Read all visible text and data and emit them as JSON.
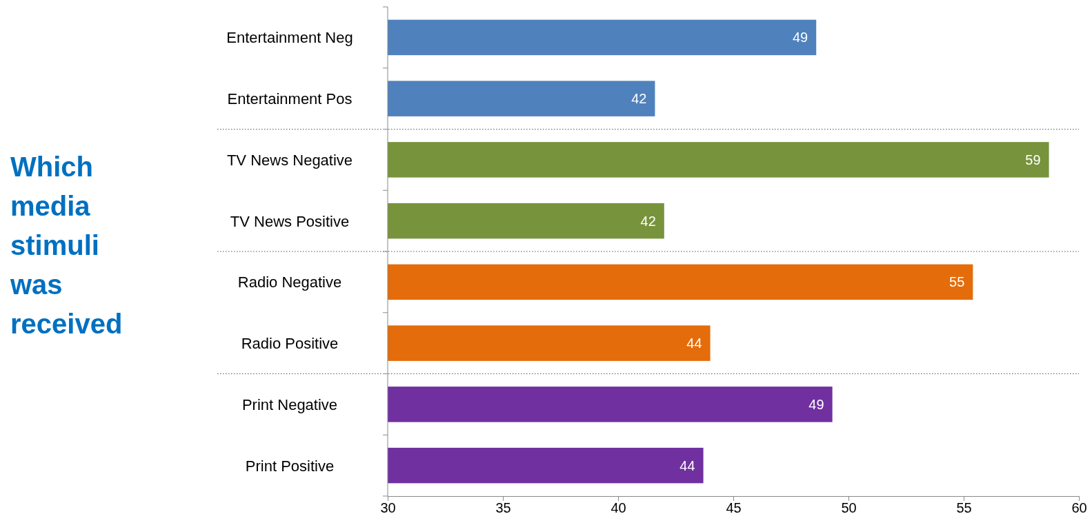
{
  "chart_data": {
    "type": "bar",
    "orientation": "horizontal",
    "title": "Which media stimuli was received",
    "categories": [
      "Entertainment Neg",
      "Entertainment Pos",
      "TV News Negative",
      "TV News Positive",
      "Radio Negative",
      "Radio Positive",
      "Print Negative",
      "Print Positive"
    ],
    "values": [
      48.6,
      41.6,
      58.7,
      42.0,
      55.4,
      44.0,
      49.3,
      43.7
    ],
    "value_labels": [
      "49",
      "42",
      "59",
      "42",
      "55",
      "44",
      "49",
      "44"
    ],
    "colors": [
      "#4f81bd",
      "#4f81bd",
      "#77933c",
      "#77933c",
      "#e46c0a",
      "#e46c0a",
      "#7030a0",
      "#7030a0"
    ],
    "xlim": [
      30,
      60
    ],
    "xticks": [
      30,
      35,
      40,
      45,
      50,
      55,
      60
    ]
  }
}
